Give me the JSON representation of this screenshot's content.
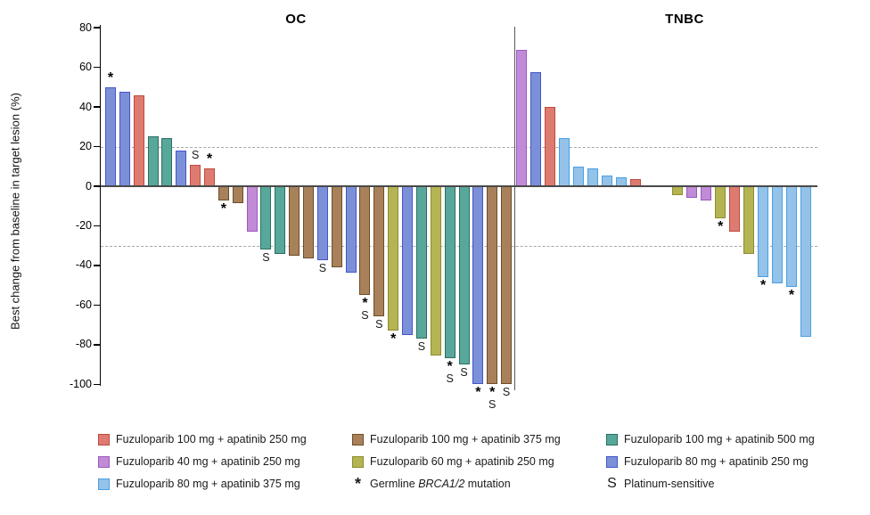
{
  "chart_data": {
    "type": "bar",
    "subtype": "waterfall",
    "title": "",
    "ylabel": "Best change from baseline in target lesion (%)",
    "xlabel": "",
    "ylim": [
      -100,
      80
    ],
    "yticks": [
      80,
      60,
      40,
      20,
      0,
      -20,
      -40,
      -60,
      -80,
      -100
    ],
    "reference_lines_pct": [
      20,
      -30
    ],
    "grid": false,
    "legend_position": "bottom",
    "treatment_groups": {
      "red": {
        "label": "Fuzuloparib 100 mg + apatinib 250 mg",
        "fill": "#DE7B70",
        "border": "#BC4A3E"
      },
      "brown": {
        "label": "Fuzuloparib 100 mg + apatinib 375 mg",
        "fill": "#A8815B",
        "border": "#6E4D28"
      },
      "teal": {
        "label": "Fuzuloparib 100 mg + apatinib 500 mg",
        "fill": "#58A79B",
        "border": "#2B6F60"
      },
      "purple": {
        "label": "Fuzuloparib 40 mg + apatinib 250 mg",
        "fill": "#C18BD7",
        "border": "#9B58C0"
      },
      "olive": {
        "label": "Fuzuloparib 60 mg + apatinib 250 mg",
        "fill": "#B5B452",
        "border": "#8C8C33"
      },
      "violet": {
        "label": "Fuzuloparib 80 mg + apatinib 250 mg",
        "fill": "#7C90D8",
        "border": "#4355C9"
      },
      "skyblue": {
        "label": "Fuzuloparib 80 mg + apatinib 375 mg",
        "fill": "#94C2E9",
        "border": "#48A0E4"
      }
    },
    "markers": {
      "asterisk": {
        "symbol": "*",
        "label": "Germline BRCA1/2 mutation",
        "italic_part": "BRCA1/2"
      },
      "s": {
        "symbol": "S",
        "label": "Platinum-sensitive"
      }
    },
    "panels": [
      {
        "title": "OC",
        "bars": [
          {
            "v": 50,
            "g": "violet",
            "m": [
              "*"
            ]
          },
          {
            "v": 47.5,
            "g": "violet"
          },
          {
            "v": 46,
            "g": "red"
          },
          {
            "v": 25,
            "g": "teal"
          },
          {
            "v": 24.5,
            "g": "teal"
          },
          {
            "v": 18,
            "g": "violet"
          },
          {
            "v": 11,
            "g": "red",
            "m": [
              "S"
            ]
          },
          {
            "v": 9,
            "g": "red",
            "m": [
              "*"
            ]
          },
          {
            "v": -7,
            "g": "brown",
            "m": [
              "*"
            ]
          },
          {
            "v": -8.5,
            "g": "brown"
          },
          {
            "v": -23,
            "g": "purple"
          },
          {
            "v": -32,
            "g": "teal",
            "m": [
              "S"
            ]
          },
          {
            "v": -34,
            "g": "teal"
          },
          {
            "v": -35,
            "g": "brown"
          },
          {
            "v": -36.5,
            "g": "brown"
          },
          {
            "v": -37.5,
            "g": "violet",
            "m": [
              "S"
            ]
          },
          {
            "v": -41,
            "g": "brown"
          },
          {
            "v": -43.5,
            "g": "violet"
          },
          {
            "v": -55,
            "g": "brown",
            "m": [
              "*",
              "S"
            ]
          },
          {
            "v": -65.5,
            "g": "brown",
            "m": [
              "S"
            ]
          },
          {
            "v": -73,
            "g": "olive",
            "m": [
              "*"
            ]
          },
          {
            "v": -75,
            "g": "violet"
          },
          {
            "v": -77,
            "g": "teal",
            "m": [
              "S"
            ]
          },
          {
            "v": -85.5,
            "g": "olive"
          },
          {
            "v": -87,
            "g": "teal",
            "m": [
              "*",
              "S"
            ]
          },
          {
            "v": -90,
            "g": "teal",
            "m": [
              "S"
            ]
          },
          {
            "v": -100,
            "g": "violet",
            "m": [
              "*"
            ]
          },
          {
            "v": -100,
            "g": "brown",
            "m": [
              "*",
              "S"
            ]
          },
          {
            "v": -100,
            "g": "brown",
            "m": [
              "S"
            ]
          }
        ]
      },
      {
        "title": "TNBC",
        "bars": [
          {
            "v": 69,
            "g": "purple"
          },
          {
            "v": 57.5,
            "g": "violet"
          },
          {
            "v": 40,
            "g": "red"
          },
          {
            "v": 24.5,
            "g": "skyblue"
          },
          {
            "v": 10,
            "g": "skyblue"
          },
          {
            "v": 9,
            "g": "skyblue"
          },
          {
            "v": 5.5,
            "g": "skyblue"
          },
          {
            "v": 4.5,
            "g": "skyblue"
          },
          {
            "v": 3.5,
            "g": "red"
          },
          {
            "v": 0,
            "g": null
          },
          {
            "v": 0,
            "g": null
          },
          {
            "v": -4.5,
            "g": "olive"
          },
          {
            "v": -6,
            "g": "purple"
          },
          {
            "v": -7,
            "g": "purple"
          },
          {
            "v": -16,
            "g": "olive",
            "m": [
              "*"
            ]
          },
          {
            "v": -23,
            "g": "red"
          },
          {
            "v": -34,
            "g": "olive"
          },
          {
            "v": -46,
            "g": "skyblue",
            "m": [
              "*"
            ]
          },
          {
            "v": -49,
            "g": "skyblue"
          },
          {
            "v": -51,
            "g": "skyblue",
            "m": [
              "*"
            ]
          },
          {
            "v": -76,
            "g": "skyblue"
          }
        ]
      }
    ]
  },
  "legend": {
    "items": [
      {
        "type": "group",
        "key": "red"
      },
      {
        "type": "group",
        "key": "brown"
      },
      {
        "type": "group",
        "key": "teal"
      },
      {
        "type": "group",
        "key": "purple"
      },
      {
        "type": "group",
        "key": "olive"
      },
      {
        "type": "group",
        "key": "violet"
      },
      {
        "type": "group",
        "key": "skyblue"
      },
      {
        "type": "marker",
        "key": "asterisk"
      },
      {
        "type": "marker",
        "key": "s"
      }
    ]
  }
}
